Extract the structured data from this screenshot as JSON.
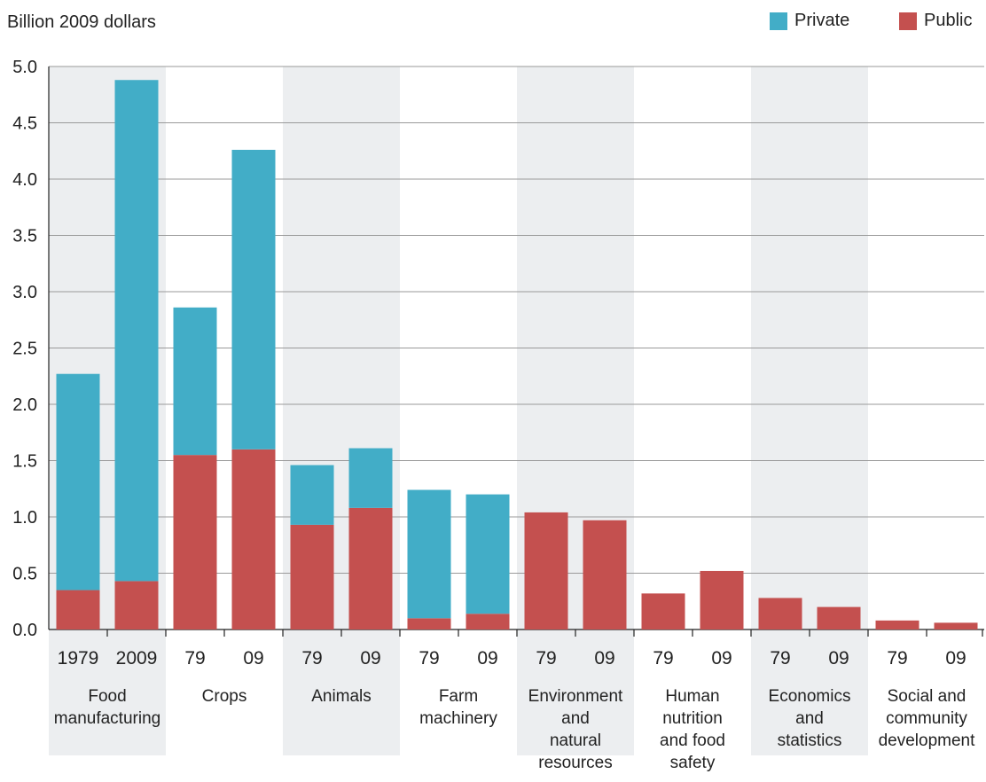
{
  "chart_data": {
    "type": "bar",
    "stacked": true,
    "ylabel": "Billion 2009 dollars",
    "ylim": [
      0,
      5.0
    ],
    "yticks": [
      "0.0",
      "0.5",
      "1.0",
      "1.5",
      "2.0",
      "2.5",
      "3.0",
      "3.5",
      "4.0",
      "4.5",
      "5.0"
    ],
    "grid": true,
    "legend_position": "top-right",
    "groups": [
      {
        "label": "Food manufacturing",
        "lines": [
          "Food",
          "manufacturing"
        ],
        "shaded": true,
        "bars": [
          {
            "tick": "1979",
            "public": 0.35,
            "private": 1.92
          },
          {
            "tick": "2009",
            "public": 0.43,
            "private": 4.45
          }
        ]
      },
      {
        "label": "Crops",
        "lines": [
          "Crops"
        ],
        "shaded": false,
        "bars": [
          {
            "tick": "79",
            "public": 1.55,
            "private": 1.31
          },
          {
            "tick": "09",
            "public": 1.6,
            "private": 2.66
          }
        ]
      },
      {
        "label": "Animals",
        "lines": [
          "Animals"
        ],
        "shaded": true,
        "bars": [
          {
            "tick": "79",
            "public": 0.93,
            "private": 0.53
          },
          {
            "tick": "09",
            "public": 1.08,
            "private": 0.53
          }
        ]
      },
      {
        "label": "Farm machinery",
        "lines": [
          "Farm",
          "machinery"
        ],
        "shaded": false,
        "bars": [
          {
            "tick": "79",
            "public": 0.1,
            "private": 1.14
          },
          {
            "tick": "09",
            "public": 0.14,
            "private": 1.06
          }
        ]
      },
      {
        "label": "Environment and natural resources",
        "lines": [
          "Environment",
          "and",
          "natural",
          "resources"
        ],
        "shaded": true,
        "bars": [
          {
            "tick": "79",
            "public": 1.04,
            "private": 0
          },
          {
            "tick": "09",
            "public": 0.97,
            "private": 0
          }
        ]
      },
      {
        "label": "Human nutrition and food safety",
        "lines": [
          "Human",
          "nutrition",
          "and food",
          "safety"
        ],
        "shaded": false,
        "bars": [
          {
            "tick": "79",
            "public": 0.32,
            "private": 0
          },
          {
            "tick": "09",
            "public": 0.52,
            "private": 0
          }
        ]
      },
      {
        "label": "Economics and statistics",
        "lines": [
          "Economics",
          "and",
          "statistics"
        ],
        "shaded": true,
        "bars": [
          {
            "tick": "79",
            "public": 0.28,
            "private": 0
          },
          {
            "tick": "09",
            "public": 0.2,
            "private": 0
          }
        ]
      },
      {
        "label": "Social and community development",
        "lines": [
          "Social and",
          "community",
          "development"
        ],
        "shaded": false,
        "bars": [
          {
            "tick": "79",
            "public": 0.08,
            "private": 0
          },
          {
            "tick": "09",
            "public": 0.06,
            "private": 0
          }
        ]
      }
    ],
    "series": [
      {
        "name": "Private",
        "key": "private",
        "color": "#42adc7"
      },
      {
        "name": "Public",
        "key": "public",
        "color": "#c4504f"
      }
    ],
    "colors": {
      "band": "#eceef0",
      "grid": "#9a9a9a",
      "axis": "#222222"
    }
  }
}
